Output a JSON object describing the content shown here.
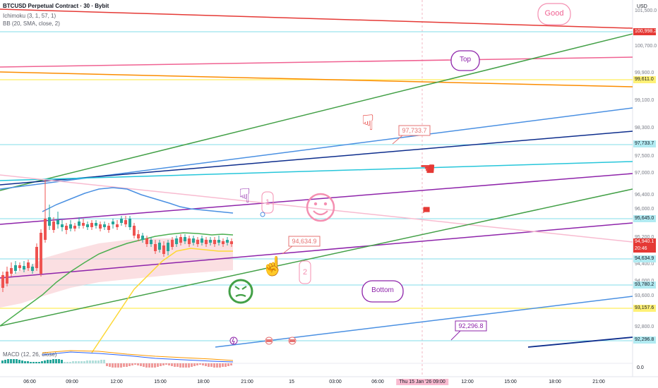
{
  "legend": {
    "title": "BTCUSD Perpetual Contract · 30 · Bybit",
    "ichimoku": "Ichimoku (3, 1, 57, 1)",
    "bb": "BB (20, SMA, close, 2)",
    "macd": "MACD (12, 26, close)"
  },
  "axis": {
    "currency": "USD",
    "price_labels": [
      "101,500.0",
      "100,700.0",
      "99,900.0",
      "99,100.0",
      "98,300.0",
      "97,500.0",
      "97,000.0",
      "96,400.0",
      "96,000.0",
      "95,200.0",
      "94,400.0",
      "94,000.0",
      "93,600.0",
      "92,800.0",
      "92,400.0"
    ],
    "macd_zero": "0.0"
  },
  "price_tags": {
    "upper_red": "100,998.2",
    "orange": "99,611.0",
    "cyan_top": "97,733.7",
    "cyan_mid": "95,645.0",
    "current_price": "94,940.1",
    "countdown": "20:46",
    "cyan_low": "94,634.9",
    "cyan_lower": "93,780.2",
    "yellow": "93,157.6",
    "blue_low": "92,296.8"
  },
  "time_axis": {
    "labels": [
      "06:00",
      "09:00",
      "12:00",
      "15:00",
      "18:00",
      "21:00",
      "15",
      "03:00",
      "06:00",
      "12:00",
      "15:00",
      "18:00",
      "21:00"
    ],
    "crosshair": "Thu 15 Jan '26",
    "crosshair_time": "09:00"
  },
  "annotations": {
    "good": "Good",
    "top": "Top",
    "bottom": "Bottom",
    "callout_97": "97,733.7",
    "callout_94": "94,634.9",
    "callout_92": "92,296.8",
    "marker_1": "1",
    "marker_2": "2"
  },
  "colors": {
    "red": "#e53935",
    "green": "#43a047",
    "pink": "#f06292",
    "orange": "#fb8c00",
    "yellow": "#fbc02d",
    "blue": "#4a90e2",
    "navy": "#0d2d8c",
    "cyan": "#26c6da",
    "purple": "#8e24aa",
    "teal": "#26a69a"
  }
}
